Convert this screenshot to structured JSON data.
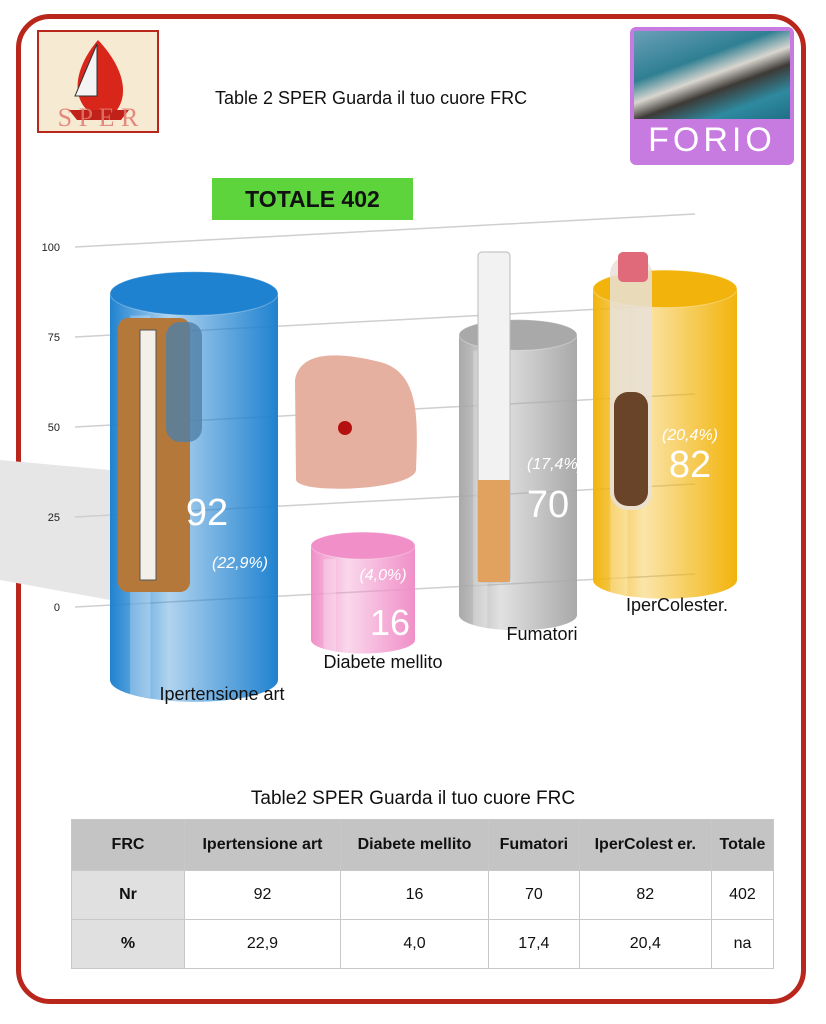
{
  "header": {
    "title": "Table 2 SPER Guarda il tuo cuore FRC",
    "logo_text": "SPER",
    "location_badge": "FORIO",
    "total_badge": "TOTALE 402"
  },
  "chart_data": {
    "type": "bar",
    "style": "3d-cylinder",
    "categories": [
      "Ipertensione art",
      "Diabete mellito",
      "Fumatori",
      "IperColester."
    ],
    "values": [
      92,
      16,
      70,
      82
    ],
    "percent_labels": [
      "(22,9%)",
      "(4,0%)",
      "(17,4%)",
      "(20,4%)"
    ],
    "colors": [
      "#1f82d0",
      "#f08fc8",
      "#a9a9a9",
      "#f2b40c"
    ],
    "ylim": [
      0,
      100
    ],
    "yticks": [
      "0",
      "25",
      "50",
      "75",
      "100"
    ],
    "grid": true,
    "legend": "none"
  },
  "table": {
    "title": "Table2 SPER Guarda il tuo cuore FRC",
    "headers": [
      "FRC",
      "Ipertensione art",
      "Diabete mellito",
      "Fumatori",
      "IperColest er.",
      "Totale"
    ],
    "rows": [
      [
        "Nr",
        "92",
        "16",
        "70",
        "82",
        "402"
      ],
      [
        "%",
        "22,9",
        "4,0",
        "17,4",
        "20,4",
        "na"
      ]
    ]
  }
}
